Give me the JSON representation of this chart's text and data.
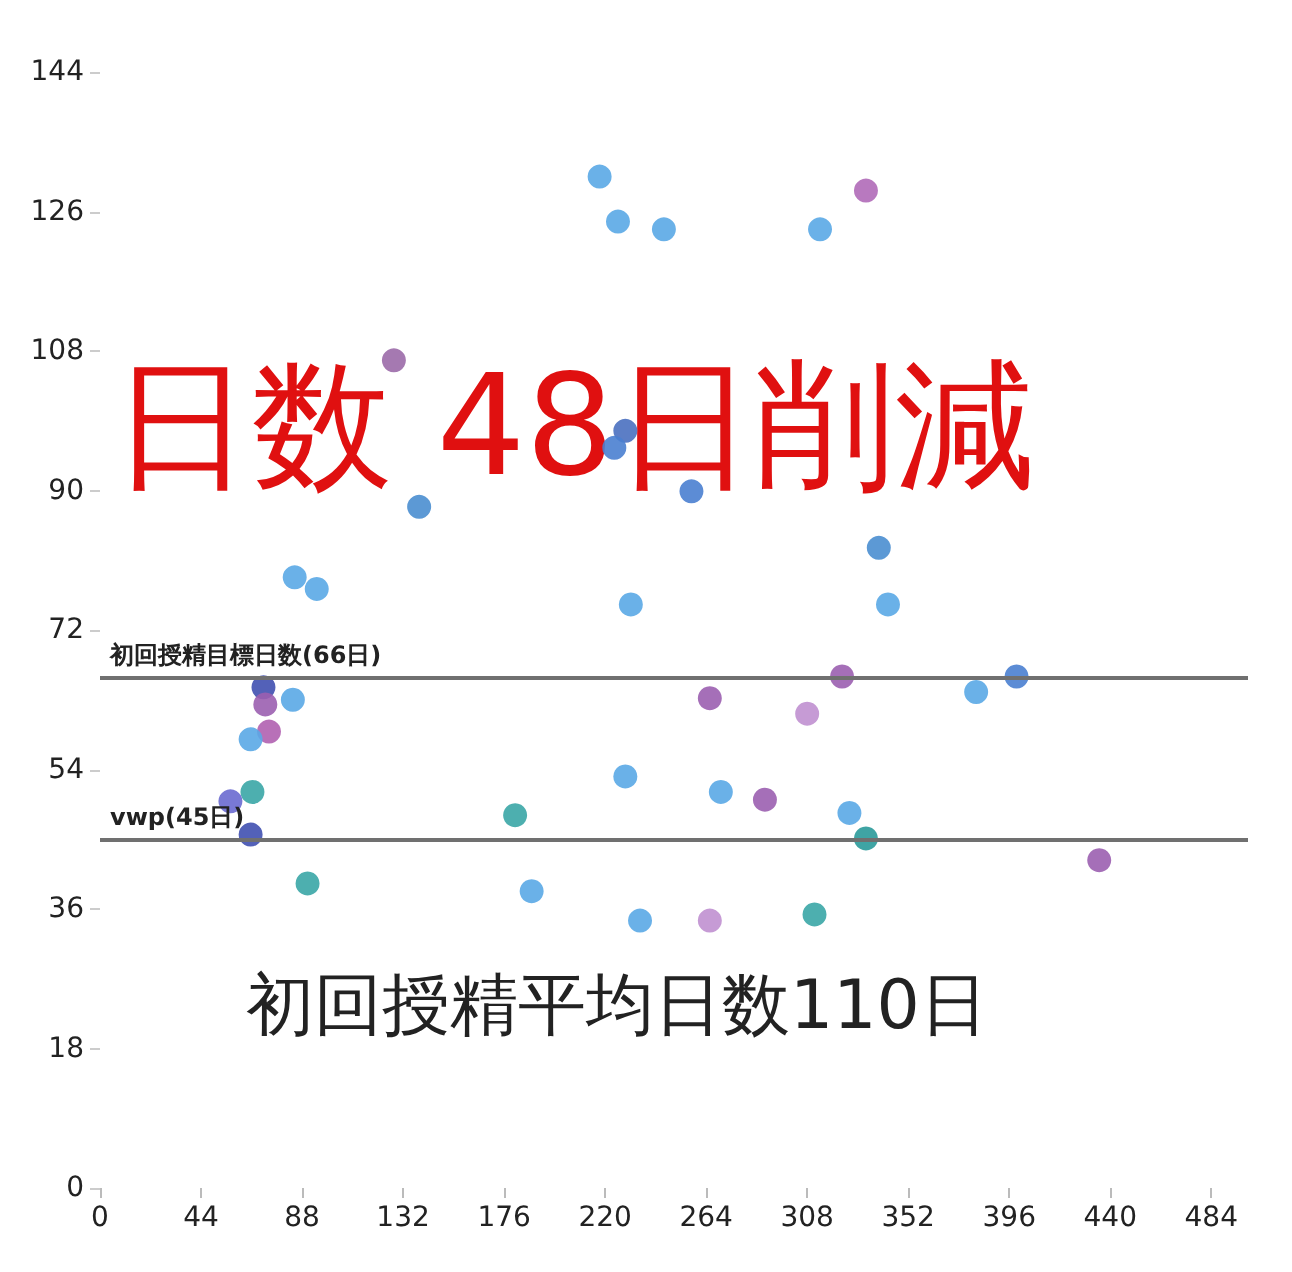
{
  "chart_data": {
    "type": "scatter",
    "annotations": [
      "日数 48日削減",
      "初回授精平均日数110日"
    ],
    "x": [
      217.6,
      225.6,
      245.6,
      313.6,
      333.6,
      128,
      139,
      228.8,
      224,
      257.6,
      339.2,
      84.8,
      94.4,
      231.2,
      343.2,
      71.2,
      72,
      84,
      73.6,
      65.6,
      66.4,
      56.8,
      65.6,
      90.4,
      180.8,
      188,
      228.8,
      235.2,
      265.6,
      308,
      323.2,
      381.6,
      399.2,
      270.4,
      289.6,
      326.4,
      333.6,
      435.2,
      265.6,
      311.2
    ],
    "values": [
      130.5,
      124.7,
      123.7,
      123.7,
      128.7,
      106.8,
      87.9,
      97.7,
      95.5,
      89.9,
      82.6,
      78.8,
      77.3,
      75.3,
      75.3,
      64.6,
      62.4,
      63,
      58.9,
      57.9,
      51.1,
      49.9,
      45.6,
      39.3,
      48.1,
      38.3,
      53.1,
      34.5,
      63.2,
      61.2,
      66,
      64,
      66,
      51.1,
      50.1,
      48.4,
      45.1,
      42.3,
      34.5,
      35.3
    ],
    "colors": [
      "#5aa9e6",
      "#5aa9e6",
      "#5aa9e6",
      "#5aa9e6",
      "#b06ab8",
      "#9b6aa8",
      "#4a8ed0",
      "#4a70c0",
      "#4a80d0",
      "#4a80d0",
      "#4a8ed0",
      "#5aa9e6",
      "#5aa9e6",
      "#5aa9e6",
      "#5aa9e6",
      "#4050b0",
      "#9b5fb0",
      "#5aa9e6",
      "#b060b0",
      "#5aa9e6",
      "#3aa6a6",
      "#6a6ad0",
      "#4050b0",
      "#3aa6a6",
      "#3aa6a6",
      "#5aa9e6",
      "#5aa9e6",
      "#5aa9e6",
      "#9b5fb0",
      "#c090d0",
      "#9b5fb0",
      "#5aa9e6",
      "#4a80d0",
      "#5aa9e6",
      "#9b5fb0",
      "#5aa9e6",
      "#2a9a9a",
      "#9b5fb0",
      "#c090d0",
      "#3aa6a6"
    ],
    "xlim": [
      0,
      500
    ],
    "xticks": [
      0,
      44,
      88,
      132,
      176,
      220,
      264,
      308,
      352,
      396,
      440,
      484
    ],
    "ylim": [
      0,
      144
    ],
    "yticks": [
      0,
      18,
      36,
      54,
      72,
      90,
      108,
      126,
      144
    ],
    "ref_lines": [
      {
        "axis": "y",
        "value": 66,
        "label": "初回授精目標日数(66日)",
        "color": "#707070"
      },
      {
        "axis": "y",
        "value": 45,
        "label": "vwp(45日)",
        "color": "#707070"
      }
    ],
    "grid": false,
    "marker": "circle"
  }
}
